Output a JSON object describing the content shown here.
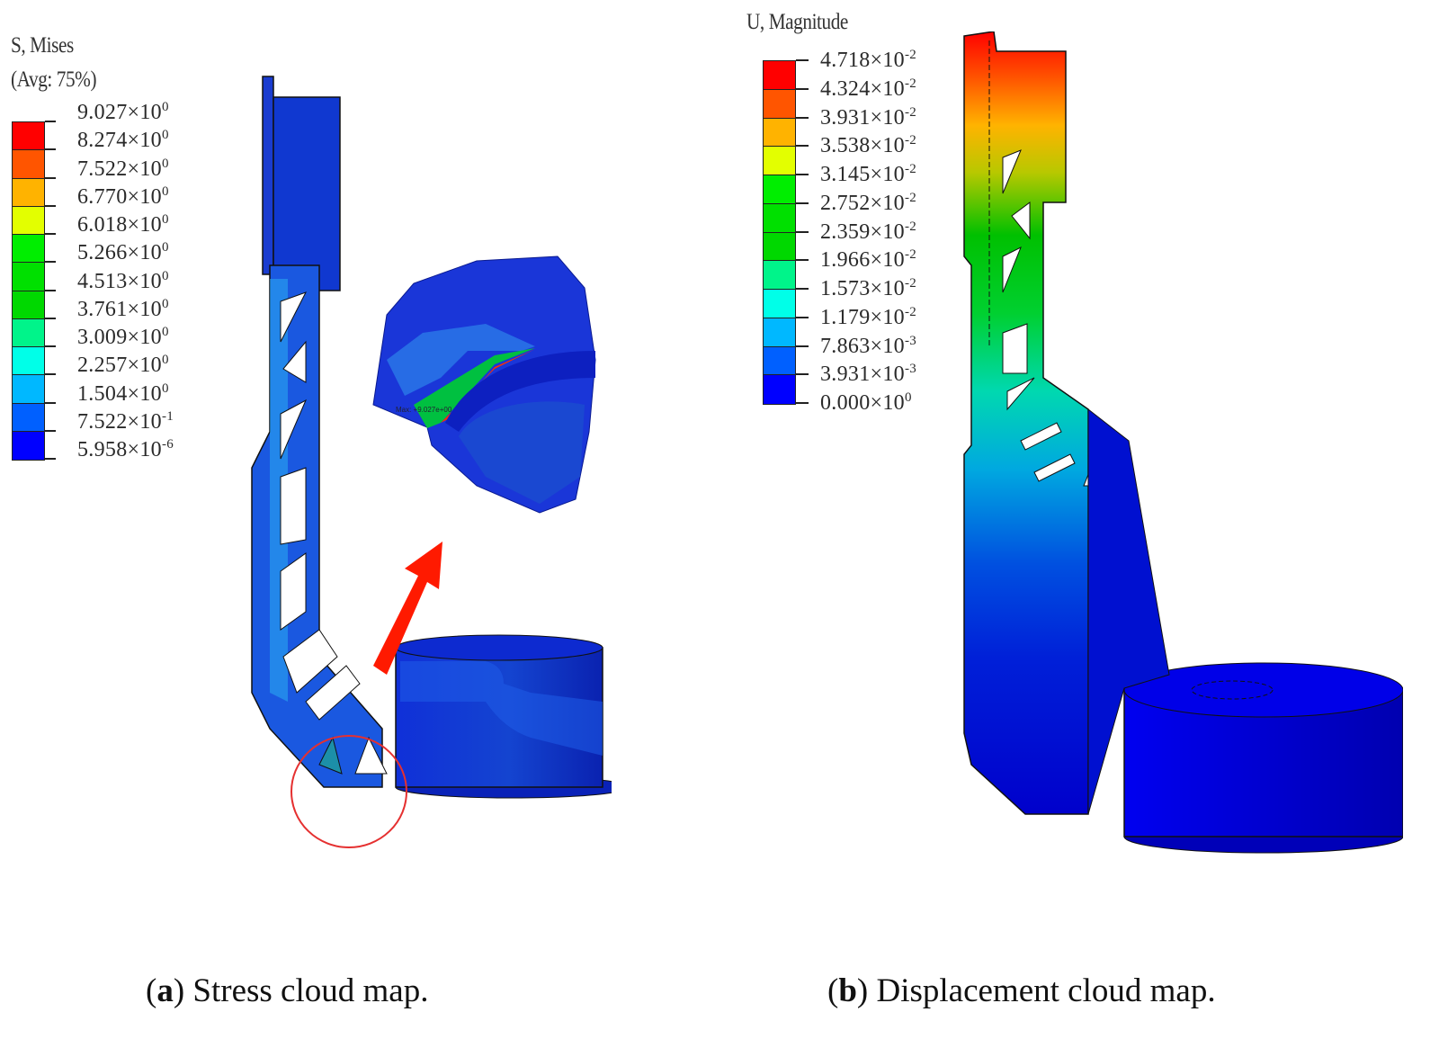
{
  "figure": {
    "panels": [
      {
        "id": "a",
        "caption_letter": "a",
        "caption_text": " Stress cloud map.",
        "legend": {
          "title_line1": "S, Mises",
          "title_line2": "(Avg: 75%)",
          "labels": [
            {
              "mantissa": "9.027",
              "exp": "0"
            },
            {
              "mantissa": "8.274",
              "exp": "0"
            },
            {
              "mantissa": "7.522",
              "exp": "0"
            },
            {
              "mantissa": "6.770",
              "exp": "0"
            },
            {
              "mantissa": "6.018",
              "exp": "0"
            },
            {
              "mantissa": "5.266",
              "exp": "0"
            },
            {
              "mantissa": "4.513",
              "exp": "0"
            },
            {
              "mantissa": "3.761",
              "exp": "0"
            },
            {
              "mantissa": "3.009",
              "exp": "0"
            },
            {
              "mantissa": "2.257",
              "exp": "0"
            },
            {
              "mantissa": "1.504",
              "exp": "0"
            },
            {
              "mantissa": "7.522",
              "exp": "-1"
            },
            {
              "mantissa": "5.958",
              "exp": "-6"
            }
          ]
        },
        "annotation": {
          "max_label": "Max: +9.027e+00",
          "arrow_color": "#ff1a00",
          "highlight_circle_color": "#e53030"
        }
      },
      {
        "id": "b",
        "caption_letter": "b",
        "caption_text": " Displacement cloud map.",
        "legend": {
          "title_line1": "U, Magnitude",
          "labels": [
            {
              "mantissa": "4.718",
              "exp": "-2"
            },
            {
              "mantissa": "4.324",
              "exp": "-2"
            },
            {
              "mantissa": "3.931",
              "exp": "-2"
            },
            {
              "mantissa": "3.538",
              "exp": "-2"
            },
            {
              "mantissa": "3.145",
              "exp": "-2"
            },
            {
              "mantissa": "2.752",
              "exp": "-2"
            },
            {
              "mantissa": "2.359",
              "exp": "-2"
            },
            {
              "mantissa": "1.966",
              "exp": "-2"
            },
            {
              "mantissa": "1.573",
              "exp": "-2"
            },
            {
              "mantissa": "1.179",
              "exp": "-2"
            },
            {
              "mantissa": "7.863",
              "exp": "-3"
            },
            {
              "mantissa": "3.931",
              "exp": "-3"
            },
            {
              "mantissa": "0.000",
              "exp": "0"
            }
          ]
        }
      }
    ],
    "colormap": [
      "#ff0000",
      "#ff5500",
      "#ffb300",
      "#e3ff00",
      "#00ee00",
      "#00e000",
      "#00d800",
      "#00f48a",
      "#00ffe8",
      "#00b8ff",
      "#0060ff",
      "#0000ff"
    ]
  }
}
